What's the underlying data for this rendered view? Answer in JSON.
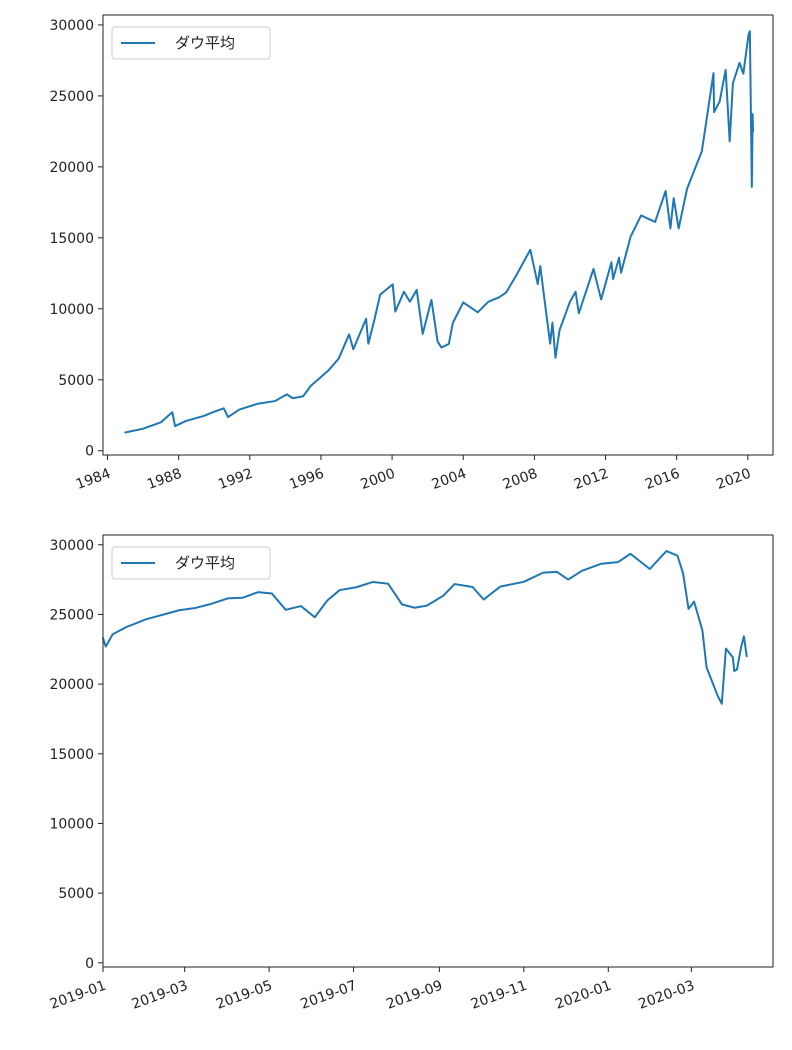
{
  "chart_data": [
    {
      "type": "line",
      "title": "",
      "xlabel": "",
      "ylabel": "",
      "x_axis_type": "date",
      "xlim": [
        "1983-10-01",
        "2021-06-01"
      ],
      "ylim": [
        -300,
        30700
      ],
      "x_ticks": [
        "1984",
        "1988",
        "1992",
        "1996",
        "2000",
        "2004",
        "2008",
        "2012",
        "2016",
        "2020"
      ],
      "y_ticks": [
        "0",
        "5000",
        "10000",
        "15000",
        "20000",
        "25000",
        "30000"
      ],
      "grid": false,
      "legend": {
        "position": "upper-left",
        "entries": [
          "ダウ平均"
        ]
      },
      "series": [
        {
          "name": "ダウ平均",
          "color": "#1f77b4",
          "points": [
            [
              "1985-01-01",
              1290
            ],
            [
              "1986-01-01",
              1550
            ],
            [
              "1987-01-01",
              2000
            ],
            [
              "1987-08-25",
              2720
            ],
            [
              "1987-10-19",
              1740
            ],
            [
              "1988-06-01",
              2100
            ],
            [
              "1989-06-01",
              2450
            ],
            [
              "1990-01-01",
              2750
            ],
            [
              "1990-07-15",
              2990
            ],
            [
              "1990-10-11",
              2370
            ],
            [
              "1991-06-01",
              2900
            ],
            [
              "1992-06-01",
              3300
            ],
            [
              "1993-06-01",
              3500
            ],
            [
              "1994-01-31",
              3970
            ],
            [
              "1994-06-01",
              3700
            ],
            [
              "1995-01-01",
              3840
            ],
            [
              "1995-06-01",
              4550
            ],
            [
              "1996-01-01",
              5200
            ],
            [
              "1996-06-01",
              5650
            ],
            [
              "1997-01-01",
              6500
            ],
            [
              "1997-08-01",
              8200
            ],
            [
              "1997-10-27",
              7150
            ],
            [
              "1998-07-17",
              9300
            ],
            [
              "1998-08-31",
              7540
            ],
            [
              "1999-01-01",
              9200
            ],
            [
              "1999-05-01",
              11000
            ],
            [
              "2000-01-14",
              11720
            ],
            [
              "2000-03-07",
              9800
            ],
            [
              "2000-09-01",
              11200
            ],
            [
              "2001-01-01",
              10500
            ],
            [
              "2001-05-21",
              11330
            ],
            [
              "2001-09-21",
              8230
            ],
            [
              "2002-03-19",
              10630
            ],
            [
              "2002-07-23",
              7700
            ],
            [
              "2002-10-09",
              7280
            ],
            [
              "2003-03-11",
              7520
            ],
            [
              "2003-06-01",
              9000
            ],
            [
              "2004-01-01",
              10450
            ],
            [
              "2004-10-25",
              9750
            ],
            [
              "2005-06-01",
              10500
            ],
            [
              "2006-01-01",
              10800
            ],
            [
              "2006-06-01",
              11150
            ],
            [
              "2007-01-01",
              12400
            ],
            [
              "2007-10-09",
              14160
            ],
            [
              "2008-03-10",
              11740
            ],
            [
              "2008-05-01",
              13010
            ],
            [
              "2008-07-15",
              10960
            ],
            [
              "2008-11-20",
              7550
            ],
            [
              "2009-01-06",
              9030
            ],
            [
              "2009-03-09",
              6550
            ],
            [
              "2009-06-01",
              8500
            ],
            [
              "2010-01-01",
              10500
            ],
            [
              "2010-04-26",
              11200
            ],
            [
              "2010-07-02",
              9690
            ],
            [
              "2011-04-29",
              12810
            ],
            [
              "2011-10-03",
              10660
            ],
            [
              "2012-05-01",
              13280
            ],
            [
              "2012-06-04",
              12100
            ],
            [
              "2012-10-05",
              13600
            ],
            [
              "2012-11-15",
              12540
            ],
            [
              "2013-06-01",
              15100
            ],
            [
              "2014-01-01",
              16580
            ],
            [
              "2014-10-15",
              16120
            ],
            [
              "2015-05-19",
              18300
            ],
            [
              "2015-08-25",
              15670
            ],
            [
              "2015-11-01",
              17800
            ],
            [
              "2016-02-11",
              15660
            ],
            [
              "2016-08-01",
              18450
            ],
            [
              "2017-01-25",
              20000
            ],
            [
              "2017-06-01",
              21100
            ],
            [
              "2018-01-26",
              26600
            ],
            [
              "2018-02-08",
              23860
            ],
            [
              "2018-06-01",
              24600
            ],
            [
              "2018-10-03",
              26830
            ],
            [
              "2018-12-24",
              21800
            ],
            [
              "2019-03-01",
              25900
            ],
            [
              "2019-07-15",
              27330
            ],
            [
              "2019-10-01",
              26570
            ],
            [
              "2020-01-17",
              29350
            ],
            [
              "2020-02-12",
              29550
            ],
            [
              "2020-03-23",
              18590
            ],
            [
              "2020-04-09",
              23720
            ],
            [
              "2020-04-17",
              22500
            ]
          ]
        }
      ]
    },
    {
      "type": "line",
      "title": "",
      "xlabel": "",
      "ylabel": "",
      "x_axis_type": "date",
      "xlim": [
        "2019-01-01",
        "2020-04-29"
      ],
      "ylim": [
        -300,
        30700
      ],
      "x_ticks": [
        "2019-01",
        "2019-03",
        "2019-05",
        "2019-07",
        "2019-09",
        "2019-11",
        "2020-01",
        "2020-03"
      ],
      "y_ticks": [
        "0",
        "5000",
        "10000",
        "15000",
        "20000",
        "25000",
        "30000"
      ],
      "grid": false,
      "legend": {
        "position": "upper-left",
        "entries": [
          "ダウ平均"
        ]
      },
      "series": [
        {
          "name": "ダウ平均",
          "color": "#1f77b4",
          "points": [
            [
              "2019-01-01",
              23300
            ],
            [
              "2019-01-03",
              22690
            ],
            [
              "2019-01-08",
              23580
            ],
            [
              "2019-01-18",
              24100
            ],
            [
              "2019-02-01",
              24650
            ],
            [
              "2019-02-25",
              25300
            ],
            [
              "2019-03-08",
              25450
            ],
            [
              "2019-03-20",
              25750
            ],
            [
              "2019-04-01",
              26150
            ],
            [
              "2019-04-12",
              26200
            ],
            [
              "2019-04-23",
              26600
            ],
            [
              "2019-05-03",
              26500
            ],
            [
              "2019-05-13",
              25330
            ],
            [
              "2019-05-24",
              25600
            ],
            [
              "2019-06-03",
              24800
            ],
            [
              "2019-06-12",
              26000
            ],
            [
              "2019-06-21",
              26750
            ],
            [
              "2019-07-03",
              26950
            ],
            [
              "2019-07-15",
              27330
            ],
            [
              "2019-07-26",
              27200
            ],
            [
              "2019-08-05",
              25720
            ],
            [
              "2019-08-14",
              25480
            ],
            [
              "2019-08-23",
              25630
            ],
            [
              "2019-09-04",
              26360
            ],
            [
              "2019-09-12",
              27180
            ],
            [
              "2019-09-25",
              26970
            ],
            [
              "2019-10-03",
              26070
            ],
            [
              "2019-10-15",
              27000
            ],
            [
              "2019-11-01",
              27340
            ],
            [
              "2019-11-15",
              28000
            ],
            [
              "2019-11-25",
              28050
            ],
            [
              "2019-12-03",
              27500
            ],
            [
              "2019-12-13",
              28130
            ],
            [
              "2019-12-27",
              28640
            ],
            [
              "2020-01-08",
              28750
            ],
            [
              "2020-01-17",
              29350
            ],
            [
              "2020-01-31",
              28260
            ],
            [
              "2020-02-12",
              29550
            ],
            [
              "2020-02-20",
              29220
            ],
            [
              "2020-02-24",
              27960
            ],
            [
              "2020-02-28",
              25400
            ],
            [
              "2020-03-03",
              25920
            ],
            [
              "2020-03-09",
              23850
            ],
            [
              "2020-03-12",
              21200
            ],
            [
              "2020-03-16",
              20190
            ],
            [
              "2020-03-20",
              19170
            ],
            [
              "2020-03-23",
              18590
            ],
            [
              "2020-03-26",
              22550
            ],
            [
              "2020-03-31",
              21920
            ],
            [
              "2020-04-01",
              20940
            ],
            [
              "2020-04-03",
              21050
            ],
            [
              "2020-04-06",
              22680
            ],
            [
              "2020-04-08",
              23430
            ],
            [
              "2020-04-10",
              22000
            ]
          ]
        }
      ]
    }
  ]
}
